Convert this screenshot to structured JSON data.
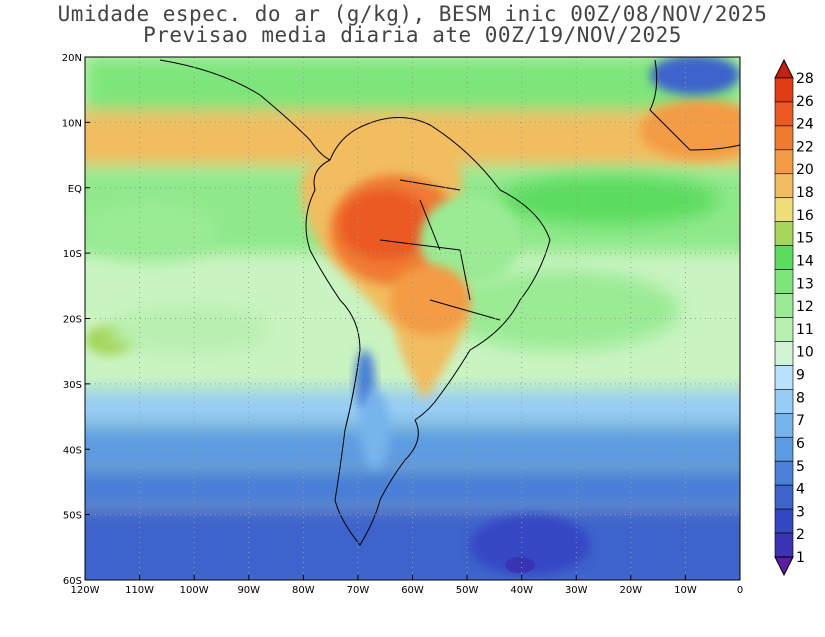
{
  "title_line1": "Umidade espec. do ar (g/kg), BESM inic 00Z/08/NOV/2025",
  "title_line2": "Previsao media diaria ate 00Z/19/NOV/2025",
  "map": {
    "lon_range": [
      -120,
      0
    ],
    "lat_range": [
      -60,
      20
    ],
    "lat_labels": [
      {
        "lat": 20,
        "text": "20N"
      },
      {
        "lat": 10,
        "text": "10N"
      },
      {
        "lat": 0,
        "text": "EQ"
      },
      {
        "lat": -10,
        "text": "10S"
      },
      {
        "lat": -20,
        "text": "20S"
      },
      {
        "lat": -30,
        "text": "30S"
      },
      {
        "lat": -40,
        "text": "40S"
      },
      {
        "lat": -50,
        "text": "50S"
      },
      {
        "lat": -60,
        "text": "60S"
      }
    ],
    "lon_labels": [
      {
        "lon": -120,
        "text": "120W"
      },
      {
        "lon": -110,
        "text": "110W"
      },
      {
        "lon": -100,
        "text": "100W"
      },
      {
        "lon": -90,
        "text": "90W"
      },
      {
        "lon": -80,
        "text": "80W"
      },
      {
        "lon": -70,
        "text": "70W"
      },
      {
        "lon": -60,
        "text": "60W"
      },
      {
        "lon": -50,
        "text": "50W"
      },
      {
        "lon": -40,
        "text": "40W"
      },
      {
        "lon": -30,
        "text": "30W"
      },
      {
        "lon": -20,
        "text": "20W"
      },
      {
        "lon": -10,
        "text": "10W"
      },
      {
        "lon": 0,
        "text": "0"
      }
    ]
  },
  "colorbar": {
    "levels": [
      "1",
      "2",
      "3",
      "4",
      "5",
      "6",
      "7",
      "8",
      "9",
      "10",
      "11",
      "12",
      "13",
      "14",
      "15",
      "16",
      "18",
      "20",
      "22",
      "24",
      "26",
      "28"
    ],
    "colors": [
      "#5a1fa6",
      "#3a34b5",
      "#3546c3",
      "#3d63cc",
      "#4a80d8",
      "#5b9be2",
      "#76b4ec",
      "#97ccf4",
      "#b7e2f9",
      "#d2f4d4",
      "#b8f0b0",
      "#9aeb94",
      "#7de67a",
      "#5bdc5e",
      "#a6d65a",
      "#eede78",
      "#f1bd5e",
      "#f39b45",
      "#f07a30",
      "#ea5a22",
      "#e23b17",
      "#c81e10"
    ]
  }
}
